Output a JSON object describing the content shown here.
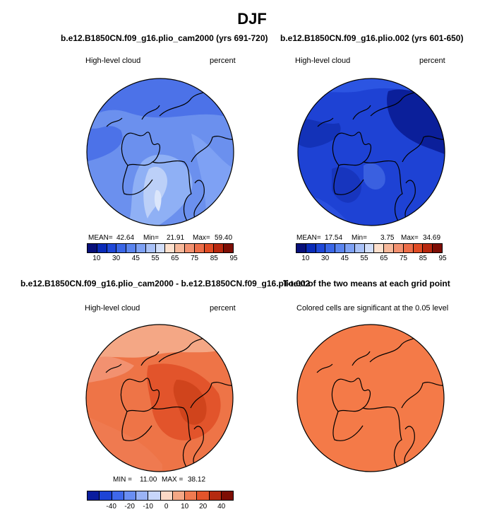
{
  "main_title": "DJF",
  "chart_data": [
    {
      "type": "heatmap",
      "title": "b.e12.B1850CN.f09_g16.plio_cam2000 (yrs 691-720)",
      "left_label": "High-level cloud",
      "right_label": "percent",
      "stats": {
        "mean_label": "MEAN=",
        "mean": "42.64",
        "min_label": "Min=",
        "min": "21.91",
        "max_label": "Max=",
        "max": "59.40"
      },
      "colorbar_ticks": [
        "10",
        "30",
        "45",
        "55",
        "65",
        "75",
        "85",
        "95"
      ],
      "projection": "north polar stereographic"
    },
    {
      "type": "heatmap",
      "title": "b.e12.B1850CN.f09_g16.plio.002 (yrs 601-650)",
      "left_label": "High-level cloud",
      "right_label": "percent",
      "stats": {
        "mean_label": "MEAN=",
        "mean": "17.54",
        "min_label": "Min=",
        "min": "3.75",
        "max_label": "Max=",
        "max": "34.69"
      },
      "colorbar_ticks": [
        "10",
        "30",
        "45",
        "55",
        "65",
        "75",
        "85",
        "95"
      ],
      "projection": "north polar stereographic"
    },
    {
      "type": "heatmap",
      "title": "b.e12.B1850CN.f09_g16.plio_cam2000 - b.e12.B1850CN.f09_g16.plio.002",
      "left_label": "High-level cloud",
      "right_label": "percent",
      "stats": {
        "min_label": "MIN =",
        "min": "11.00",
        "max_label": "MAX =",
        "max": "38.12"
      },
      "colorbar_ticks": [
        "-40",
        "-20",
        "-10",
        "0",
        "10",
        "20",
        "40"
      ],
      "projection": "north polar stereographic"
    },
    {
      "type": "heatmap",
      "title": "T-test of the two means at each grid point",
      "subtitle": "Colored cells are significant at the 0.05 level",
      "projection": "north polar stereographic"
    }
  ],
  "colors": {
    "scale": [
      "#08107a",
      "#0a2bb8",
      "#1f48d8",
      "#3a66e6",
      "#5a84ee",
      "#7ea1f4",
      "#a9c1f7",
      "#d2def9",
      "#fde0cd",
      "#f7b89a",
      "#f29170",
      "#ec6d48",
      "#e04b24",
      "#b8280f",
      "#7e0e04"
    ],
    "diff_scale": [
      "#0a1d9e",
      "#1d44d6",
      "#3f68ea",
      "#6a8ef2",
      "#9ab3f6",
      "#c8d6fa",
      "#fbd8c6",
      "#f4a785",
      "#ef7a50",
      "#e2542b",
      "#b52a0f",
      "#7e0e04"
    ],
    "ttest_fill": "#f47a48"
  }
}
